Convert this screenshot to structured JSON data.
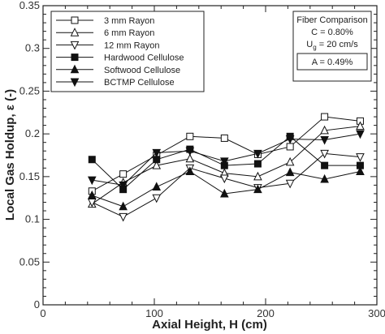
{
  "chart_data": {
    "type": "line",
    "title": "",
    "xlabel": "Axial Height, H (cm)",
    "ylabel": "Local Gas Holdup, ε (-)",
    "xlim": [
      0,
      300
    ],
    "ylim": [
      0,
      0.35
    ],
    "xticks": [
      "0",
      "100",
      "200",
      "300"
    ],
    "yticks": [
      "0",
      "0.05",
      "0.1",
      "0.15",
      "0.2",
      "0.25",
      "0.3",
      "0.35"
    ],
    "grid": false,
    "legend_position": "top-left",
    "annotation": {
      "line1": "Fiber Comparison",
      "line2": "C = 0.80%",
      "line3_prefix": "U",
      "line3_sub": "g",
      "line3_suffix": " = 20 cm/s",
      "line4": "A = 0.49%"
    },
    "x": [
      44,
      72,
      102,
      132,
      163,
      193,
      222,
      253,
      285
    ],
    "series": [
      {
        "name": "3 mm Rayon",
        "marker": "square-open",
        "values": [
          0.133,
          0.153,
          0.175,
          0.197,
          0.195,
          0.176,
          0.185,
          0.22,
          0.215
        ]
      },
      {
        "name": "6 mm Rayon",
        "marker": "triangle-up-open",
        "values": [
          0.118,
          0.143,
          0.163,
          0.171,
          0.154,
          0.15,
          0.167,
          0.204,
          0.209
        ]
      },
      {
        "name": "12 mm Rayon",
        "marker": "triangle-down-open",
        "values": [
          0.12,
          0.103,
          0.125,
          0.16,
          0.148,
          0.137,
          0.142,
          0.177,
          0.173
        ]
      },
      {
        "name": "Hardwood Cellulose",
        "marker": "square-filled",
        "values": [
          0.17,
          0.135,
          0.17,
          0.182,
          0.163,
          0.165,
          0.197,
          0.163,
          0.163
        ]
      },
      {
        "name": "Softwood Cellulose",
        "marker": "triangle-up-filled",
        "values": [
          0.128,
          0.115,
          0.138,
          0.156,
          0.13,
          0.135,
          0.155,
          0.147,
          0.156
        ]
      },
      {
        "name": "BCTMP Cellulose",
        "marker": "triangle-down-filled",
        "values": [
          0.146,
          0.14,
          0.178,
          0.18,
          0.168,
          0.177,
          0.194,
          0.193,
          0.2
        ]
      }
    ]
  }
}
